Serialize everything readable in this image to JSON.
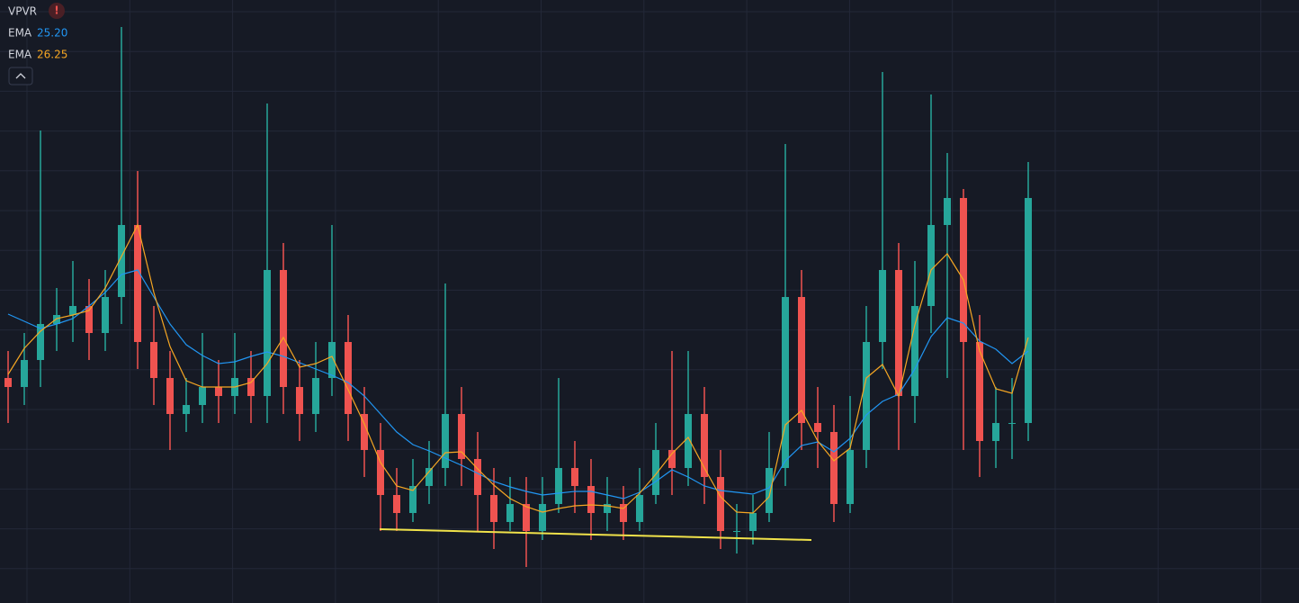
{
  "chart_data": {
    "type": "candlestick",
    "study": {
      "name": "VPVR",
      "badge": "!"
    },
    "ylim": [
      0,
      670
    ],
    "up_color": "#26a69a",
    "down_color": "#ef5350",
    "open": [
      250,
      240,
      270,
      310,
      320,
      330,
      300,
      340,
      420,
      290,
      250,
      210,
      220,
      240,
      230,
      250,
      230,
      370,
      240,
      210,
      250,
      290,
      210,
      170,
      120,
      100,
      130,
      150,
      210,
      160,
      120,
      90,
      110,
      80,
      110,
      150,
      130,
      100,
      110,
      90,
      120,
      170,
      150,
      210,
      140,
      80,
      80,
      100,
      150,
      340,
      200,
      190,
      110,
      170,
      290,
      370,
      230,
      330,
      420,
      450,
      290,
      180,
      200,
      200
    ],
    "high": [
      280,
      300,
      525,
      350,
      380,
      360,
      370,
      640,
      480,
      330,
      280,
      250,
      300,
      270,
      300,
      280,
      555,
      400,
      270,
      290,
      420,
      320,
      240,
      200,
      150,
      160,
      180,
      355,
      240,
      190,
      150,
      140,
      140,
      140,
      250,
      180,
      160,
      140,
      130,
      150,
      200,
      280,
      280,
      240,
      170,
      110,
      120,
      190,
      510,
      370,
      240,
      220,
      230,
      330,
      590,
      400,
      380,
      565,
      500,
      460,
      320,
      240,
      250,
      490
    ],
    "low": [
      200,
      220,
      240,
      280,
      290,
      270,
      280,
      310,
      260,
      220,
      170,
      190,
      200,
      200,
      210,
      200,
      200,
      210,
      180,
      190,
      230,
      180,
      140,
      80,
      80,
      90,
      110,
      130,
      130,
      80,
      60,
      80,
      40,
      70,
      100,
      100,
      70,
      80,
      70,
      80,
      110,
      120,
      130,
      110,
      60,
      55,
      65,
      90,
      130,
      170,
      150,
      90,
      100,
      150,
      260,
      170,
      200,
      300,
      250,
      170,
      140,
      150,
      160,
      180
    ],
    "close": [
      240,
      270,
      310,
      320,
      330,
      300,
      340,
      420,
      290,
      250,
      210,
      220,
      240,
      230,
      250,
      230,
      370,
      240,
      210,
      250,
      290,
      210,
      170,
      120,
      100,
      130,
      150,
      210,
      160,
      120,
      90,
      110,
      80,
      110,
      150,
      130,
      100,
      110,
      90,
      120,
      170,
      150,
      210,
      140,
      80,
      80,
      100,
      150,
      340,
      200,
      190,
      110,
      170,
      290,
      370,
      230,
      330,
      420,
      450,
      290,
      180,
      200,
      200,
      450
    ],
    "indicators": [
      {
        "name": "EMA",
        "value": 25.2,
        "value_label": "25.20",
        "color": "#2196f3",
        "values": [
          321,
          313,
          305,
          310,
          316,
          330,
          345,
          365,
          370,
          340,
          310,
          287,
          275,
          266,
          268,
          274,
          279,
          274,
          267,
          260,
          253,
          245,
          230,
          210,
          190,
          176,
          169,
          161,
          153,
          144,
          135,
          129,
          124,
          120,
          122,
          124,
          124,
          120,
          116,
          123,
          135,
          148,
          140,
          130,
          125,
          123,
          121,
          128,
          158,
          175,
          179,
          168,
          183,
          209,
          224,
          232,
          260,
          296,
          317,
          311,
          291,
          282,
          266,
          280
        ]
      },
      {
        "name": "EMA",
        "value": 26.25,
        "value_label": "26.25",
        "color": "#f5a623",
        "values": [
          254,
          283,
          302,
          316,
          320,
          325,
          350,
          385,
          420,
          345,
          285,
          247,
          240,
          240,
          240,
          245,
          266,
          295,
          262,
          266,
          274,
          237,
          199,
          156,
          130,
          125,
          146,
          167,
          168,
          149,
          131,
          116,
          107,
          101,
          105,
          108,
          109,
          108,
          105,
          122,
          143,
          166,
          184,
          150,
          118,
          101,
          100,
          118,
          198,
          214,
          180,
          158,
          172,
          250,
          265,
          230,
          309,
          370,
          388,
          359,
          280,
          238,
          233,
          295
        ]
      }
    ]
  }
}
